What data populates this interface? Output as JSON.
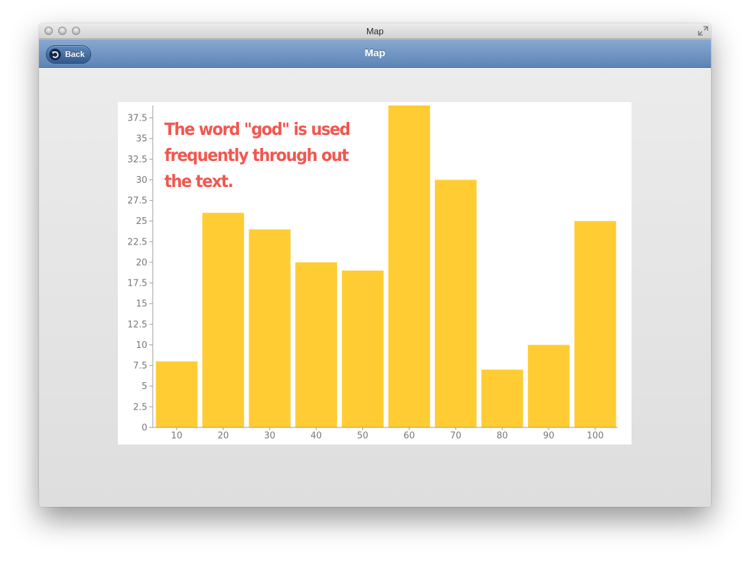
{
  "window": {
    "title": "Map"
  },
  "navbar": {
    "title": "Map",
    "back_label": "Back"
  },
  "icons": {
    "back": "back-arrow-icon",
    "fullscreen": "fullscreen-icon"
  },
  "colors": {
    "bar": "#FFCC33",
    "annotation": "#F2574F",
    "navbar": "#6E93C2"
  },
  "chart_data": {
    "type": "bar",
    "categories": [
      "10",
      "20",
      "30",
      "40",
      "50",
      "60",
      "70",
      "80",
      "90",
      "100"
    ],
    "values": [
      8,
      26,
      24,
      20,
      19,
      39,
      30,
      7,
      10,
      25
    ],
    "ylim": [
      0,
      39
    ],
    "yticks": [
      "0",
      "2.5",
      "5",
      "7.5",
      "10",
      "12.5",
      "15",
      "17.5",
      "20",
      "22.5",
      "25",
      "27.5",
      "30",
      "32.5",
      "35",
      "37.5"
    ],
    "annotation": "The word \"god\" is used frequently through out the text.",
    "grid": false
  }
}
